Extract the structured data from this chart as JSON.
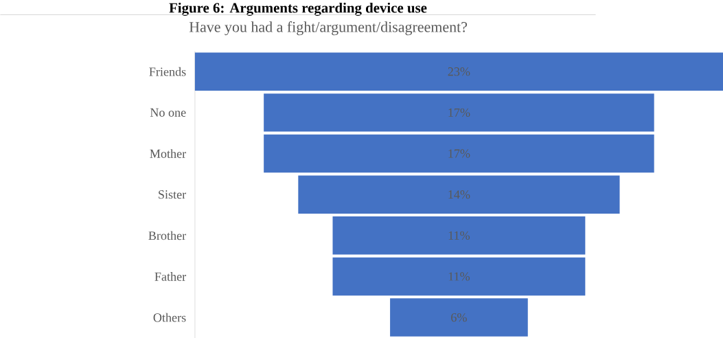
{
  "chart_data": {
    "type": "other",
    "title": "Figure 6: Arguments regarding device use",
    "subtitle": "Have you had a fight/argument/disagreement?",
    "categories": [
      "Friends",
      "No one",
      "Mother",
      "Sister",
      "Brother",
      "Father",
      "Others"
    ],
    "values": [
      23,
      17,
      17,
      14,
      11,
      11,
      6
    ],
    "value_labels": [
      "23%",
      "17%",
      "17%",
      "14%",
      "11%",
      "11%",
      "6%"
    ],
    "color": "#4472c4"
  }
}
